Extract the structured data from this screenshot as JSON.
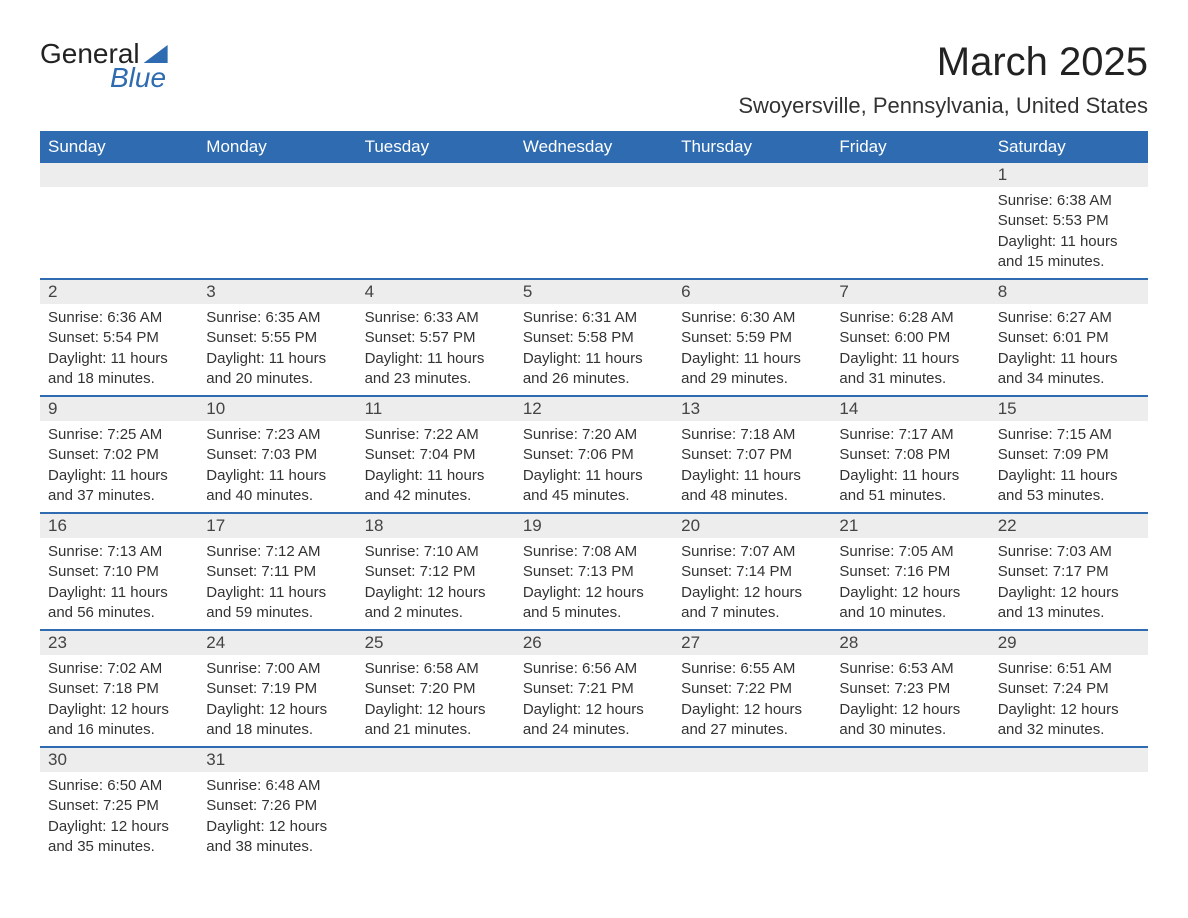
{
  "logo": {
    "line1": "General",
    "line2": "Blue"
  },
  "title": "March 2025",
  "location": "Swoyersville, Pennsylvania, United States",
  "colors": {
    "header_bg": "#2e6bb0",
    "header_fg": "#ffffff",
    "daynum_bg": "#ededed",
    "row_border": "#2e6bb0",
    "text": "#333333",
    "background": "#ffffff"
  },
  "daysOfWeek": [
    "Sunday",
    "Monday",
    "Tuesday",
    "Wednesday",
    "Thursday",
    "Friday",
    "Saturday"
  ],
  "weeks": [
    [
      null,
      null,
      null,
      null,
      null,
      null,
      {
        "n": "1",
        "sunrise": "6:38 AM",
        "sunset": "5:53 PM",
        "daylight": "11 hours and 15 minutes."
      }
    ],
    [
      {
        "n": "2",
        "sunrise": "6:36 AM",
        "sunset": "5:54 PM",
        "daylight": "11 hours and 18 minutes."
      },
      {
        "n": "3",
        "sunrise": "6:35 AM",
        "sunset": "5:55 PM",
        "daylight": "11 hours and 20 minutes."
      },
      {
        "n": "4",
        "sunrise": "6:33 AM",
        "sunset": "5:57 PM",
        "daylight": "11 hours and 23 minutes."
      },
      {
        "n": "5",
        "sunrise": "6:31 AM",
        "sunset": "5:58 PM",
        "daylight": "11 hours and 26 minutes."
      },
      {
        "n": "6",
        "sunrise": "6:30 AM",
        "sunset": "5:59 PM",
        "daylight": "11 hours and 29 minutes."
      },
      {
        "n": "7",
        "sunrise": "6:28 AM",
        "sunset": "6:00 PM",
        "daylight": "11 hours and 31 minutes."
      },
      {
        "n": "8",
        "sunrise": "6:27 AM",
        "sunset": "6:01 PM",
        "daylight": "11 hours and 34 minutes."
      }
    ],
    [
      {
        "n": "9",
        "sunrise": "7:25 AM",
        "sunset": "7:02 PM",
        "daylight": "11 hours and 37 minutes."
      },
      {
        "n": "10",
        "sunrise": "7:23 AM",
        "sunset": "7:03 PM",
        "daylight": "11 hours and 40 minutes."
      },
      {
        "n": "11",
        "sunrise": "7:22 AM",
        "sunset": "7:04 PM",
        "daylight": "11 hours and 42 minutes."
      },
      {
        "n": "12",
        "sunrise": "7:20 AM",
        "sunset": "7:06 PM",
        "daylight": "11 hours and 45 minutes."
      },
      {
        "n": "13",
        "sunrise": "7:18 AM",
        "sunset": "7:07 PM",
        "daylight": "11 hours and 48 minutes."
      },
      {
        "n": "14",
        "sunrise": "7:17 AM",
        "sunset": "7:08 PM",
        "daylight": "11 hours and 51 minutes."
      },
      {
        "n": "15",
        "sunrise": "7:15 AM",
        "sunset": "7:09 PM",
        "daylight": "11 hours and 53 minutes."
      }
    ],
    [
      {
        "n": "16",
        "sunrise": "7:13 AM",
        "sunset": "7:10 PM",
        "daylight": "11 hours and 56 minutes."
      },
      {
        "n": "17",
        "sunrise": "7:12 AM",
        "sunset": "7:11 PM",
        "daylight": "11 hours and 59 minutes."
      },
      {
        "n": "18",
        "sunrise": "7:10 AM",
        "sunset": "7:12 PM",
        "daylight": "12 hours and 2 minutes."
      },
      {
        "n": "19",
        "sunrise": "7:08 AM",
        "sunset": "7:13 PM",
        "daylight": "12 hours and 5 minutes."
      },
      {
        "n": "20",
        "sunrise": "7:07 AM",
        "sunset": "7:14 PM",
        "daylight": "12 hours and 7 minutes."
      },
      {
        "n": "21",
        "sunrise": "7:05 AM",
        "sunset": "7:16 PM",
        "daylight": "12 hours and 10 minutes."
      },
      {
        "n": "22",
        "sunrise": "7:03 AM",
        "sunset": "7:17 PM",
        "daylight": "12 hours and 13 minutes."
      }
    ],
    [
      {
        "n": "23",
        "sunrise": "7:02 AM",
        "sunset": "7:18 PM",
        "daylight": "12 hours and 16 minutes."
      },
      {
        "n": "24",
        "sunrise": "7:00 AM",
        "sunset": "7:19 PM",
        "daylight": "12 hours and 18 minutes."
      },
      {
        "n": "25",
        "sunrise": "6:58 AM",
        "sunset": "7:20 PM",
        "daylight": "12 hours and 21 minutes."
      },
      {
        "n": "26",
        "sunrise": "6:56 AM",
        "sunset": "7:21 PM",
        "daylight": "12 hours and 24 minutes."
      },
      {
        "n": "27",
        "sunrise": "6:55 AM",
        "sunset": "7:22 PM",
        "daylight": "12 hours and 27 minutes."
      },
      {
        "n": "28",
        "sunrise": "6:53 AM",
        "sunset": "7:23 PM",
        "daylight": "12 hours and 30 minutes."
      },
      {
        "n": "29",
        "sunrise": "6:51 AM",
        "sunset": "7:24 PM",
        "daylight": "12 hours and 32 minutes."
      }
    ],
    [
      {
        "n": "30",
        "sunrise": "6:50 AM",
        "sunset": "7:25 PM",
        "daylight": "12 hours and 35 minutes."
      },
      {
        "n": "31",
        "sunrise": "6:48 AM",
        "sunset": "7:26 PM",
        "daylight": "12 hours and 38 minutes."
      },
      null,
      null,
      null,
      null,
      null
    ]
  ],
  "labels": {
    "sunrise": "Sunrise: ",
    "sunset": "Sunset: ",
    "daylight": "Daylight: "
  }
}
